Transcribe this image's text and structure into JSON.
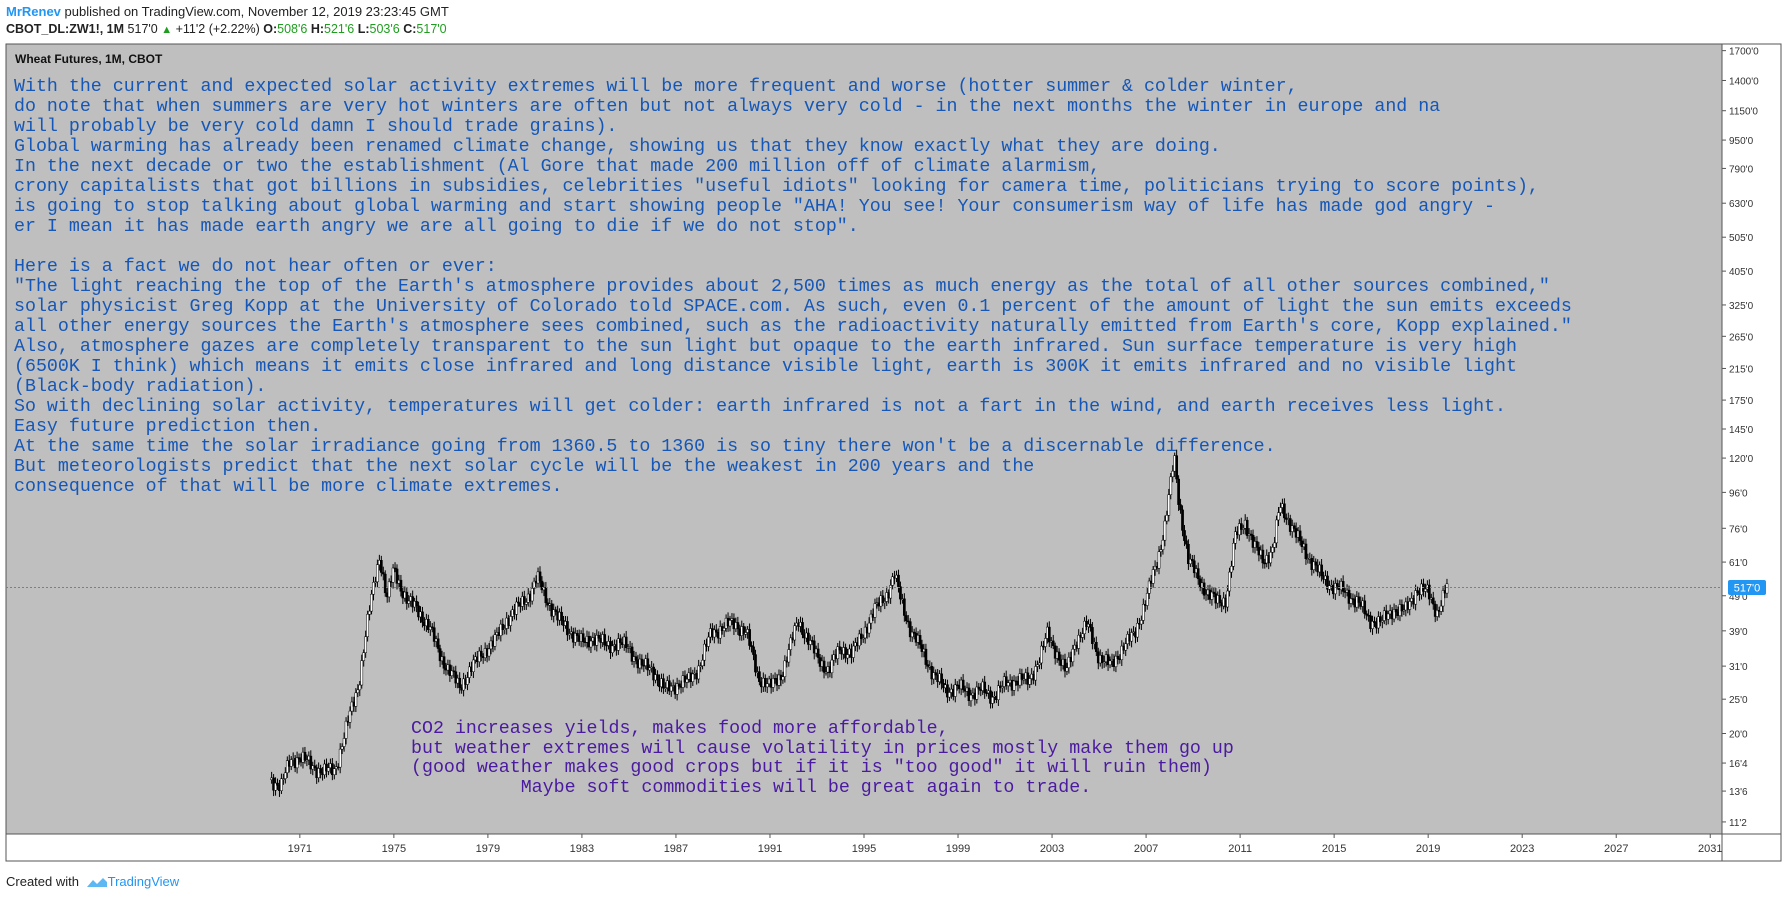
{
  "header": {
    "user": "MrRenev",
    "published_text": "published on TradingView.com, November 12, 2019 23:23:45 GMT",
    "symbol": "CBOT_DL:ZW1!, 1M",
    "last": "517'0",
    "change": "+11'2 (+2.22%)",
    "open_label": "O:",
    "open": "508'6",
    "high_label": "H:",
    "high": "521'6",
    "low_label": "L:",
    "low": "503'6",
    "close_label": "C:",
    "close": "517'0"
  },
  "footer": {
    "created_with": "Created with",
    "brand": "TradingView"
  },
  "colors": {
    "background": "#bfbfbf",
    "up": "#ffffff",
    "down": "#000000",
    "price_line": "#2196f3",
    "note_blue": "#1457b8",
    "note_purple": "#4a1aa0"
  },
  "chart_data": {
    "type": "candlestick",
    "title": "Wheat Futures, 1M, CBOT",
    "y_scale": "log",
    "y_tick_labels": [
      "1700'0",
      "1400'0",
      "1150'0",
      "950'0",
      "790'0",
      "630'0",
      "505'0",
      "405'0",
      "325'0",
      "265'0",
      "215'0",
      "175'0",
      "145'0",
      "120'0",
      "96'0",
      "76'0",
      "61'0",
      "49'0",
      "39'0",
      "31'0",
      "25'0",
      "20'0",
      "16'4",
      "13'6",
      "11'2"
    ],
    "y_tick_values": [
      1700,
      1400,
      1150,
      950,
      790,
      630,
      505,
      405,
      325,
      265,
      215,
      175,
      145,
      120,
      96,
      76,
      61,
      49,
      39,
      31,
      25,
      20,
      16.5,
      13.75,
      11.25
    ],
    "x_tick_labels": [
      "1971",
      "1975",
      "1979",
      "1983",
      "1987",
      "1991",
      "1995",
      "1999",
      "2003",
      "2007",
      "2011",
      "2015",
      "2019",
      "2023",
      "2027",
      "2031"
    ],
    "x_tick_values": [
      1971,
      1975,
      1979,
      1983,
      1987,
      1991,
      1995,
      1999,
      2003,
      2007,
      2011,
      2015,
      2019,
      2023,
      2027,
      2031
    ],
    "x_range": [
      1958.5,
      2031.5
    ],
    "y_range": [
      10.4,
      1775
    ],
    "last_price_label": "517'0",
    "last_price": 51.7,
    "series_points": [
      [
        1969.8,
        14.8
      ],
      [
        1970.2,
        14.2
      ],
      [
        1970.6,
        16.8
      ],
      [
        1971.0,
        17.2
      ],
      [
        1971.5,
        16.2
      ],
      [
        1972.0,
        15.6
      ],
      [
        1972.5,
        15.8
      ],
      [
        1973.0,
        21.0
      ],
      [
        1973.5,
        27.5
      ],
      [
        1973.9,
        42.0
      ],
      [
        1974.2,
        55.0
      ],
      [
        1974.4,
        64.0
      ],
      [
        1974.7,
        48.0
      ],
      [
        1975.0,
        58.0
      ],
      [
        1975.3,
        52.0
      ],
      [
        1975.6,
        47.0
      ],
      [
        1976.0,
        45.0
      ],
      [
        1976.5,
        40.0
      ],
      [
        1977.0,
        33.0
      ],
      [
        1977.5,
        29.0
      ],
      [
        1977.8,
        27.0
      ],
      [
        1978.2,
        30.0
      ],
      [
        1978.8,
        34.0
      ],
      [
        1979.3,
        36.5
      ],
      [
        1979.8,
        42.0
      ],
      [
        1980.3,
        45.5
      ],
      [
        1980.8,
        50.0
      ],
      [
        1981.1,
        55.0
      ],
      [
        1981.5,
        48.0
      ],
      [
        1982.0,
        42.0
      ],
      [
        1982.5,
        39.0
      ],
      [
        1983.0,
        36.0
      ],
      [
        1983.5,
        37.5
      ],
      [
        1984.0,
        35.5
      ],
      [
        1984.5,
        36.0
      ],
      [
        1985.0,
        35.0
      ],
      [
        1985.5,
        31.0
      ],
      [
        1986.0,
        30.5
      ],
      [
        1986.5,
        26.5
      ],
      [
        1987.0,
        27.5
      ],
      [
        1987.5,
        28.0
      ],
      [
        1988.0,
        31.0
      ],
      [
        1988.5,
        38.5
      ],
      [
        1989.0,
        40.0
      ],
      [
        1989.5,
        41.0
      ],
      [
        1990.0,
        38.5
      ],
      [
        1990.5,
        29.0
      ],
      [
        1991.0,
        27.0
      ],
      [
        1991.5,
        29.5
      ],
      [
        1991.8,
        34.0
      ],
      [
        1992.2,
        42.0
      ],
      [
        1992.6,
        37.0
      ],
      [
        1993.0,
        33.0
      ],
      [
        1993.5,
        30.0
      ],
      [
        1994.0,
        35.0
      ],
      [
        1994.5,
        33.5
      ],
      [
        1995.0,
        39.0
      ],
      [
        1995.5,
        45.0
      ],
      [
        1996.0,
        50.0
      ],
      [
        1996.3,
        56.0
      ],
      [
        1996.6,
        47.0
      ],
      [
        1997.0,
        39.0
      ],
      [
        1997.5,
        34.0
      ],
      [
        1998.0,
        29.0
      ],
      [
        1998.5,
        26.5
      ],
      [
        1999.0,
        27.0
      ],
      [
        1999.5,
        26.0
      ],
      [
        2000.0,
        26.5
      ],
      [
        2000.5,
        25.5
      ],
      [
        2001.0,
        27.5
      ],
      [
        2001.5,
        28.5
      ],
      [
        2002.0,
        28.0
      ],
      [
        2002.5,
        33.0
      ],
      [
        2002.8,
        38.0
      ],
      [
        2003.2,
        34.0
      ],
      [
        2003.6,
        29.5
      ],
      [
        2004.0,
        36.5
      ],
      [
        2004.5,
        40.5
      ],
      [
        2005.0,
        33.0
      ],
      [
        2005.5,
        31.0
      ],
      [
        2006.0,
        35.0
      ],
      [
        2006.5,
        38.0
      ],
      [
        2007.0,
        48.0
      ],
      [
        2007.5,
        62.0
      ],
      [
        2007.8,
        78.0
      ],
      [
        2008.0,
        96.0
      ],
      [
        2008.2,
        120.0
      ],
      [
        2008.4,
        90.0
      ],
      [
        2008.8,
        62.0
      ],
      [
        2009.2,
        55.0
      ],
      [
        2009.6,
        50.0
      ],
      [
        2010.0,
        47.0
      ],
      [
        2010.4,
        48.0
      ],
      [
        2010.8,
        72.0
      ],
      [
        2011.2,
        80.0
      ],
      [
        2011.6,
        67.0
      ],
      [
        2012.0,
        62.0
      ],
      [
        2012.4,
        66.0
      ],
      [
        2012.7,
        88.0
      ],
      [
        2013.0,
        82.0
      ],
      [
        2013.5,
        70.0
      ],
      [
        2014.0,
        62.0
      ],
      [
        2014.5,
        55.0
      ],
      [
        2015.0,
        52.0
      ],
      [
        2015.5,
        50.0
      ],
      [
        2016.0,
        47.0
      ],
      [
        2016.5,
        42.0
      ],
      [
        2017.0,
        41.0
      ],
      [
        2017.5,
        45.0
      ],
      [
        2018.0,
        44.0
      ],
      [
        2018.5,
        51.0
      ],
      [
        2019.0,
        50.0
      ],
      [
        2019.4,
        44.0
      ],
      [
        2019.8,
        51.7
      ]
    ]
  },
  "notes": {
    "main": "With the current and expected solar activity extremes will be more frequent and worse (hotter summer & colder winter,\ndo note that when summers are very hot winters are often but not always very cold - in the next months the winter in europe and na\nwill probably be very cold damn I should trade grains).\nGlobal warming has already been renamed climate change, showing us that they know exactly what they are doing.\nIn the next decade or two the establishment (Al Gore that made 200 million off of climate alarmism,\ncrony capitalists that got billions in subsidies, celebrities \"useful idiots\" looking for camera time, politicians trying to score points),\nis going to stop talking about global warming and start showing people \"AHA! You see! Your consumerism way of life has made god angry -\ner I mean it has made earth angry we are all going to die if we do not stop\".\n\nHere is a fact we do not hear often or ever:\n\"The light reaching the top of the Earth's atmosphere provides about 2,500 times as much energy as the total of all other sources combined,\"\nsolar physicist Greg Kopp at the University of Colorado told SPACE.com. As such, even 0.1 percent of the amount of light the sun emits exceeds\nall other energy sources the Earth's atmosphere sees combined, such as the radioactivity naturally emitted from Earth's core, Kopp explained.\"\nAlso, atmosphere gazes are completely transparent to the sun light but opaque to the earth infrared. Sun surface temperature is very high\n(6500K I think) which means it emits close infrared and long distance visible light, earth is 300K it emits infrared and no visible light\n(Black-body radiation).\nSo with declining solar activity, temperatures will get colder: earth infrared is not a fart in the wind, and earth receives less light.\nEasy future prediction then.\nAt the same time the solar irradiance going from 1360.5 to 1360 is so tiny there won't be a discernable difference.\nBut meteorologists predict that the next solar cycle will be the weakest in 200 years and the\nconsequence of that will be more climate extremes.",
    "bottom": "CO2 increases yields, makes food more affordable,\nbut weather extremes will cause volatility in prices mostly make them go up\n(good weather makes good crops but if it is \"too good\" it will ruin them)\n          Maybe soft commodities will be great again to trade."
  }
}
